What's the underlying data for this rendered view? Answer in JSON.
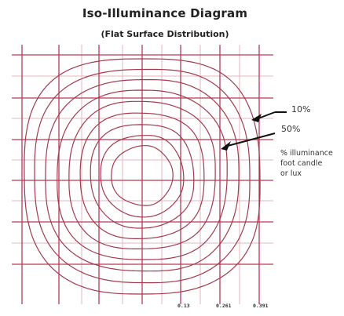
{
  "title": "Iso-Illuminance Diagram",
  "subtitle": "(Flat Surface Distribution)",
  "annotations": {
    "outer_level": "10%",
    "inner_level": "50%",
    "legend_lines": [
      "% illuminance",
      "foot candle",
      "or lux"
    ]
  },
  "axis": {
    "tick_labels": [
      "0.13",
      "0.261",
      "0.391"
    ]
  },
  "colors": {
    "contour": "#a23a4c",
    "grid_major": "#b83a54",
    "grid_minor": "#e6b7bf",
    "text": "#222222",
    "arrow": "#111111"
  },
  "contour_count": 9
}
